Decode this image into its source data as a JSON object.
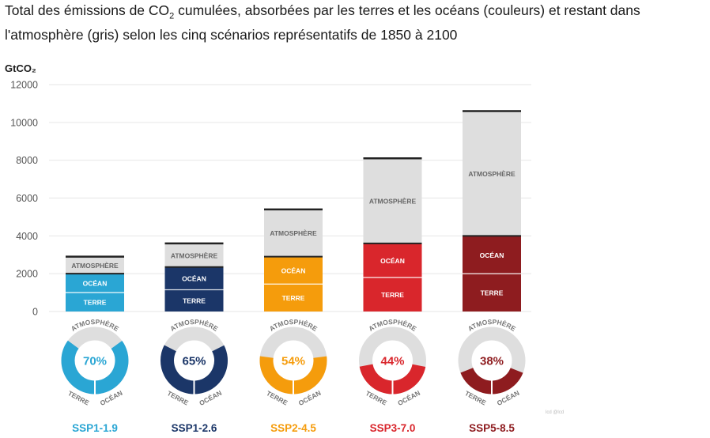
{
  "chart_data": {
    "type": "bar",
    "title_part1": "Total des émissions de CO",
    "title_sub": "2",
    "title_part2": " cumulées, absorbées par les terres et les océans (couleurs) et restant dans l'atmosphère (gris) selon les cinq scénarios représentatifs de 1850 à 2100",
    "ylabel": "GtCO₂",
    "ylim": [
      0,
      12000
    ],
    "yticks": [
      0,
      2000,
      4000,
      6000,
      8000,
      10000,
      12000
    ],
    "segment_labels": {
      "terre": "TERRE",
      "ocean": "OCÉAN",
      "atmosphere": "ATMOSPHÈRE"
    },
    "scenarios": [
      {
        "name": "SSP1-1.9",
        "terre": 1000,
        "ocean": 1000,
        "atmosphere": 900,
        "absorbed_pct": "70%",
        "absorbed_frac": 0.7,
        "color": "#2aa6d4",
        "light": "#7ccbe6"
      },
      {
        "name": "SSP1-2.6",
        "terre": 1150,
        "ocean": 1200,
        "atmosphere": 1250,
        "absorbed_pct": "65%",
        "absorbed_frac": 0.65,
        "color": "#1b3668",
        "light": "#5a7099"
      },
      {
        "name": "SSP2-4.5",
        "terre": 1450,
        "ocean": 1450,
        "atmosphere": 2500,
        "absorbed_pct": "54%",
        "absorbed_frac": 0.54,
        "color": "#f59c0c",
        "light": "#f8c064"
      },
      {
        "name": "SSP3-7.0",
        "terre": 1800,
        "ocean": 1800,
        "atmosphere": 4500,
        "absorbed_pct": "44%",
        "absorbed_frac": 0.44,
        "color": "#d9262c",
        "light": "#e8787b"
      },
      {
        "name": "SSP5-8.5",
        "terre": 2000,
        "ocean": 2000,
        "atmosphere": 6600,
        "absorbed_pct": "38%",
        "absorbed_frac": 0.38,
        "color": "#8e1c1f",
        "light": "#b46466"
      }
    ],
    "atmosphere_color": "#dedede",
    "watermark": "lcd @lcd"
  }
}
